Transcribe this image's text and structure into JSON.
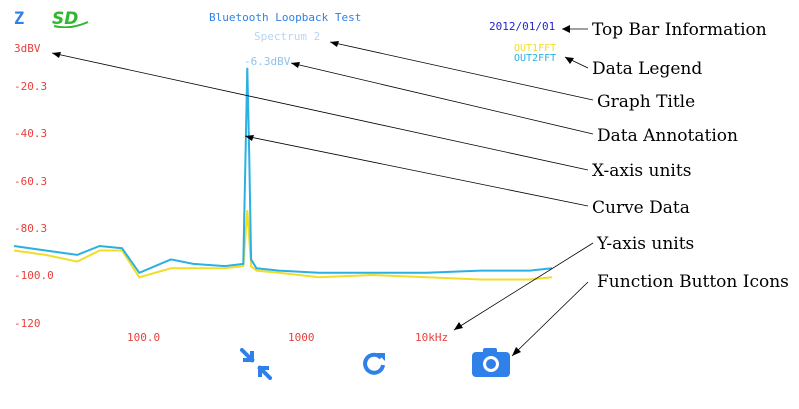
{
  "header": {
    "logo_left": "Z",
    "logo_sd": "SD",
    "app_title": "Bluetooth Loopback Test",
    "date": "2012/01/01"
  },
  "chart_data": {
    "type": "line",
    "title": "Spectrum 2",
    "annotation": "-6.3dBV",
    "y_unit_label": "3dBV",
    "y_ticks": [
      "-20.3",
      "-40.3",
      "-60.3",
      "-80.3",
      "-100.0",
      "-120"
    ],
    "x_ticks": [
      "100.0",
      "1000",
      "10kHz"
    ],
    "xscale": "log",
    "ylim": [
      -120,
      3
    ],
    "legend_placement": "top-right",
    "series": [
      {
        "name": "OUT1FFT",
        "color": "#f2dc28",
        "x": [
          20,
          30,
          45,
          60,
          80,
          100,
          150,
          200,
          300,
          380,
          400,
          420,
          450,
          600,
          1000,
          2000,
          4000,
          8000,
          15000,
          20000
        ],
        "y": [
          -88,
          -90,
          -93,
          -88,
          -88,
          -100,
          -96,
          -96,
          -96,
          -95,
          -70,
          -95,
          -97,
          -98,
          -100,
          -99,
          -100,
          -101,
          -101,
          -100
        ]
      },
      {
        "name": "OUT2FFT",
        "color": "#2ab0e2",
        "x": [
          20,
          30,
          45,
          60,
          80,
          100,
          150,
          200,
          300,
          380,
          400,
          410,
          420,
          450,
          600,
          1000,
          2000,
          4000,
          8000,
          15000,
          20000
        ],
        "y": [
          -86,
          -88,
          -90,
          -86,
          -87,
          -98,
          -92,
          -94,
          -95,
          -94,
          -6.3,
          -45,
          -92,
          -96,
          -97,
          -98,
          -98,
          -98,
          -97,
          -97,
          -96
        ]
      }
    ]
  },
  "toolbar": {
    "buttons": [
      {
        "name": "collapse-arrows",
        "color": "#2f80e8"
      },
      {
        "name": "refresh",
        "color": "#2f80e8"
      },
      {
        "name": "camera",
        "color": "#2f80e8"
      }
    ]
  },
  "callouts": [
    "Top Bar Information",
    "Data Legend",
    "Graph Title",
    "Data Annotation",
    "X-axis units",
    "Curve Data",
    "Y-axis units",
    "Function Button Icons"
  ]
}
